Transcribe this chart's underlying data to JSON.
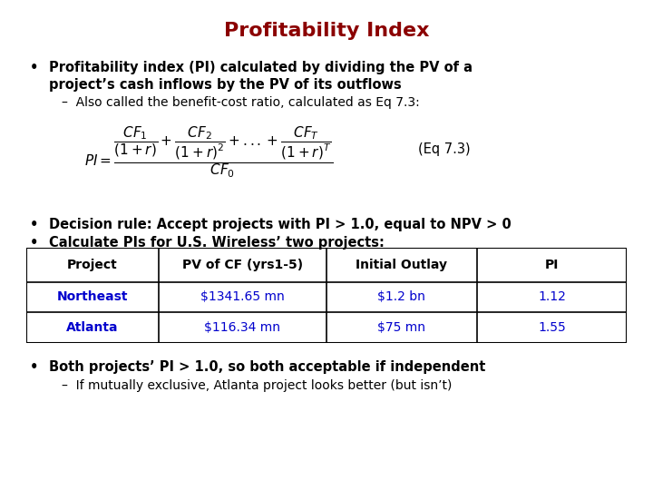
{
  "title": "Profitability Index",
  "title_color": "#8B0000",
  "title_fontsize": 16,
  "bg_color": "#FFFFFF",
  "bullet1_line1": "Profitability index (PI) calculated by dividing the PV of a",
  "bullet1_line2": "project’s cash inflows by the PV of its outflows",
  "bullet1_sub": "–  Also called the benefit-cost ratio, calculated as Eq 7.3:",
  "eq_label": "(Eq 7.3)",
  "bullet2": "Decision rule: Accept projects with PI > 1.0, equal to NPV > 0",
  "bullet3": "Calculate PIs for U.S. Wireless’ two projects:",
  "table_headers": [
    "Project",
    "PV of CF (yrs1-5)",
    "Initial Outlay",
    "PI"
  ],
  "table_row1": [
    "Northeast",
    "$1341.65 mn",
    "$1.2 bn",
    "1.12"
  ],
  "table_row2": [
    "Atlanta",
    "$116.34 mn",
    "$75 mn",
    "1.55"
  ],
  "table_header_color": "#000000",
  "table_data_color": "#0000CD",
  "table_border_color": "#000000",
  "bullet4_bold": "Both projects’ PI > 1.0, so both acceptable if independent",
  "bullet4_sub": "–  If mutually exclusive, Atlanta project looks better (but isn’t)",
  "text_color": "#000000",
  "body_fontsize": 10.5,
  "sub_fontsize": 10,
  "table_fontsize": 10
}
